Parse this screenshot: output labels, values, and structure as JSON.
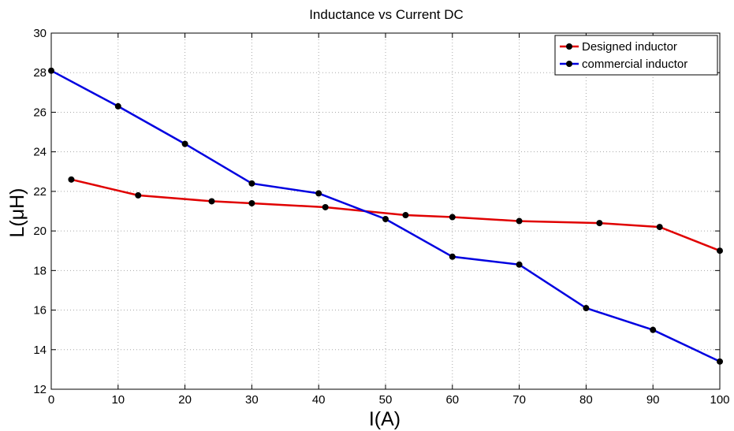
{
  "chart_data": {
    "type": "line",
    "title": "Inductance vs Current DC",
    "xlabel": "I(A)",
    "ylabel": "L(μH)",
    "xlim": [
      0,
      100
    ],
    "ylim": [
      12,
      30
    ],
    "xticks": [
      0,
      10,
      20,
      30,
      40,
      50,
      60,
      70,
      80,
      90,
      100
    ],
    "yticks": [
      12,
      14,
      16,
      18,
      20,
      22,
      24,
      26,
      28,
      30
    ],
    "grid": true,
    "legend_position": "top-right",
    "series": [
      {
        "name": "Designed inductor",
        "color": "#e00000",
        "marker_color": "#000000",
        "x": [
          3,
          13,
          24,
          30,
          41,
          53,
          60,
          70,
          82,
          91,
          100
        ],
        "y": [
          22.6,
          21.8,
          21.5,
          21.4,
          21.2,
          20.8,
          20.7,
          20.5,
          20.4,
          20.2,
          19.0
        ]
      },
      {
        "name": "commercial inductor",
        "color": "#0000e0",
        "marker_color": "#000000",
        "x": [
          0,
          10,
          20,
          30,
          40,
          50,
          60,
          70,
          80,
          90,
          100
        ],
        "y": [
          28.1,
          26.3,
          24.4,
          22.4,
          21.9,
          20.6,
          18.7,
          18.3,
          16.1,
          15.0,
          13.4
        ]
      }
    ]
  }
}
